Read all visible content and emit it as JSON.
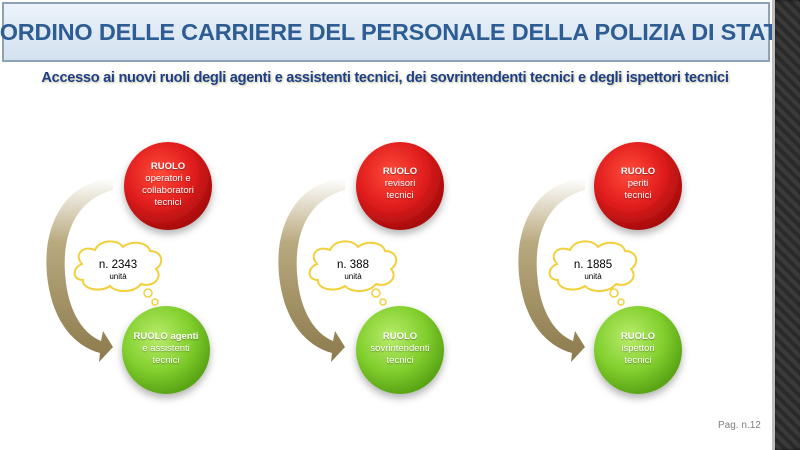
{
  "header": {
    "title": "RIORDINO DELLE CARRIERE DEL PERSONALE DELLA POLIZIA DI STATO",
    "subtitle": "Accesso ai nuovi ruoli degli agenti e assistenti tecnici, dei sovrintendenti tecnici e degli ispettori tecnici"
  },
  "groups": [
    {
      "from_role": {
        "title": "RUOLO",
        "lines": [
          "operatori e",
          "collaboratori",
          "tecnici"
        ]
      },
      "count": "n. 2343",
      "unit": "unità",
      "to_role": {
        "title": "RUOLO agenti",
        "lines": [
          "e assistenti",
          "tecnici"
        ]
      }
    },
    {
      "from_role": {
        "title": "RUOLO",
        "lines": [
          "revisori",
          "tecnici"
        ]
      },
      "count": "n. 388",
      "unit": "unità",
      "to_role": {
        "title": "RUOLO",
        "lines": [
          "sovrintendenti",
          "tecnici"
        ]
      }
    },
    {
      "from_role": {
        "title": "RUOLO",
        "lines": [
          "periti",
          "tecnici"
        ]
      },
      "count": "n. 1885",
      "unit": "unità",
      "to_role": {
        "title": "RUOLO",
        "lines": [
          "ispettori",
          "tecnici"
        ]
      }
    }
  ],
  "footer": {
    "page": "Pag. n.12"
  },
  "colors": {
    "title_text": "#2d5d93",
    "subtitle_text": "#1f3d8a",
    "from_circle": "#d91c1c",
    "to_circle": "#7fcc2a",
    "arrow": "#a08f63",
    "cloud_stroke": "#f2cf3b"
  }
}
